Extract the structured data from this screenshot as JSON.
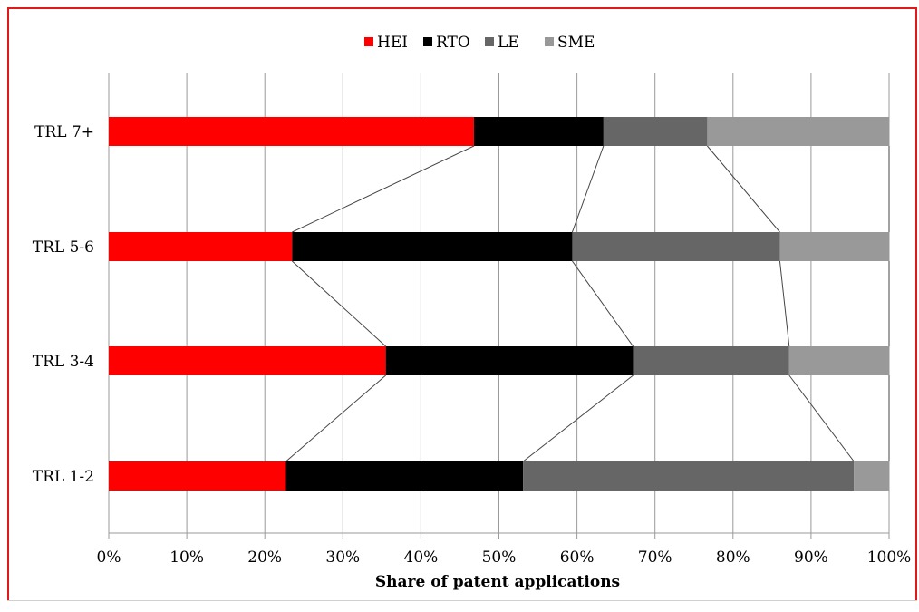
{
  "chart_data": {
    "type": "bar",
    "orientation": "horizontal",
    "stacked": "percent",
    "categories": [
      "TRL 7+",
      "TRL 5-6",
      "TRL 3-4",
      "TRL 1-2"
    ],
    "series": [
      {
        "name": "HEI",
        "color": "#ff0000",
        "values": [
          46.8,
          23.5,
          35.5,
          22.7
        ]
      },
      {
        "name": "RTO",
        "color": "#000000",
        "values": [
          16.6,
          35.9,
          31.7,
          30.4
        ]
      },
      {
        "name": "LE",
        "color": "#666666",
        "values": [
          13.3,
          26.6,
          20.0,
          42.4
        ]
      },
      {
        "name": "SME",
        "color": "#999999",
        "values": [
          23.3,
          14.0,
          12.8,
          4.5
        ]
      }
    ],
    "xlim": [
      0,
      100
    ],
    "xticks": [
      "0%",
      "10%",
      "20%",
      "30%",
      "40%",
      "50%",
      "60%",
      "70%",
      "80%",
      "90%",
      "100%"
    ],
    "xlabel": "Share of patent applications",
    "legend_position": "top",
    "grid": "vertical",
    "series_lines": true
  }
}
